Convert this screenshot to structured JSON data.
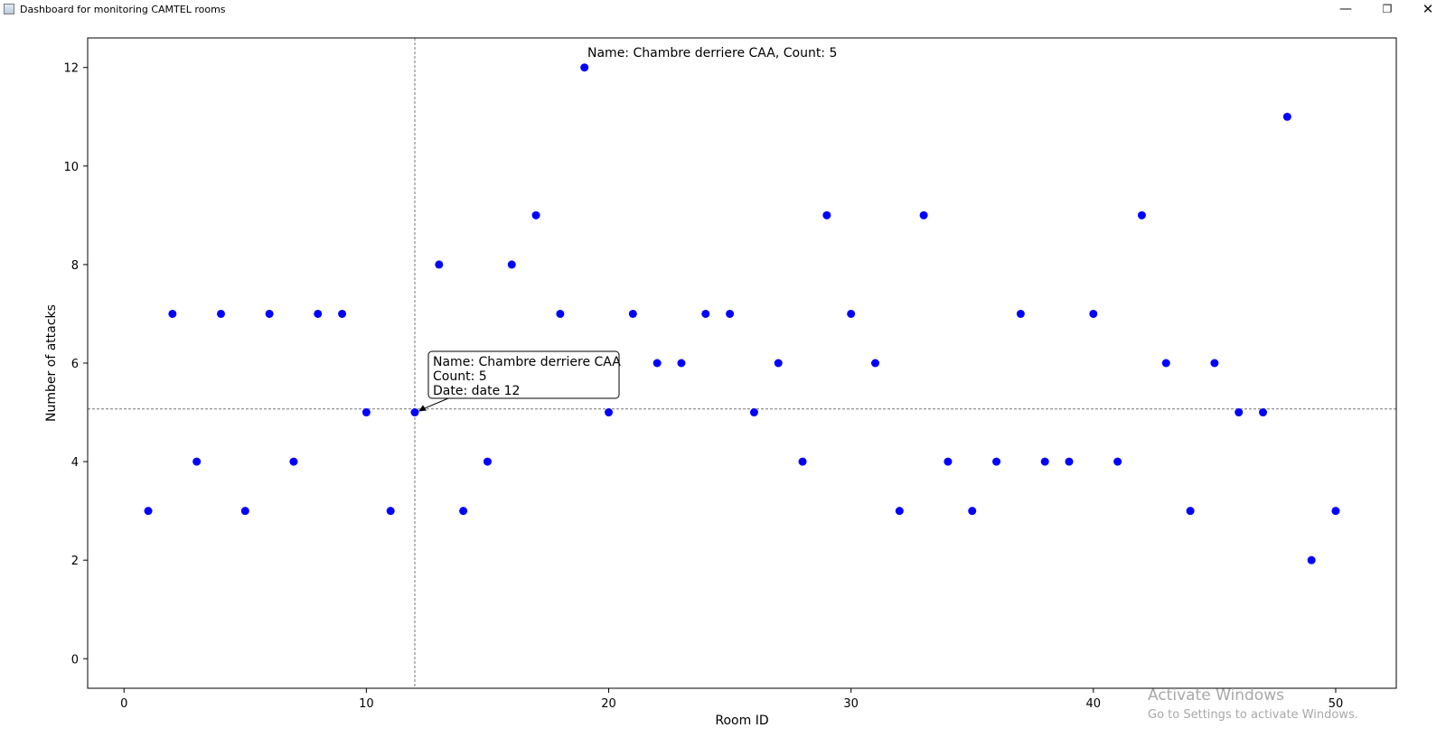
{
  "window": {
    "title": "Dashboard for monitoring CAMTEL rooms",
    "minimize_glyph": "—",
    "restore_glyph": "❐",
    "close_glyph": "✕"
  },
  "chart_data": {
    "type": "scatter",
    "title": "",
    "xlabel": "Room ID",
    "ylabel": "Number of attacks",
    "xlim": [
      -1.5,
      52.5
    ],
    "ylim": [
      -0.6,
      12.6
    ],
    "xticks": [
      0,
      10,
      20,
      30,
      40,
      50
    ],
    "yticks": [
      0,
      2,
      4,
      6,
      8,
      10,
      12
    ],
    "grid": false,
    "legend": "none",
    "marker_color": "#0000ff",
    "series": [
      {
        "x": [
          1,
          2,
          3,
          4,
          5,
          6,
          7,
          8,
          9,
          10,
          11,
          12,
          13,
          14,
          15,
          16,
          17,
          18,
          19,
          20,
          21,
          22,
          23,
          24,
          25,
          26,
          27,
          28,
          29,
          30,
          31,
          32,
          33,
          34,
          35,
          36,
          37,
          38,
          39,
          40,
          41,
          42,
          43,
          44,
          45,
          46,
          47,
          48,
          49,
          50
        ],
        "y": [
          3,
          7,
          4,
          7,
          3,
          7,
          4,
          7,
          7,
          5,
          3,
          5,
          8,
          3,
          4,
          8,
          9,
          7,
          12,
          5,
          7,
          6,
          6,
          7,
          7,
          5,
          6,
          4,
          9,
          7,
          6,
          3,
          9,
          4,
          3,
          4,
          7,
          4,
          4,
          7,
          4,
          9,
          6,
          3,
          6,
          5,
          5,
          11,
          2,
          3
        ]
      }
    ],
    "crosshair": {
      "x": 12,
      "y": 5.07
    },
    "hover_status": "Name: Chambre derriere CAA, Count: 5",
    "annotation": {
      "x": 12,
      "y": 5,
      "lines": [
        "Name: Chambre derriere CAA",
        "Count: 5",
        "Date: date 12"
      ]
    }
  },
  "watermark": {
    "line1": "Activate Windows",
    "line2": "Go to Settings to activate Windows."
  }
}
